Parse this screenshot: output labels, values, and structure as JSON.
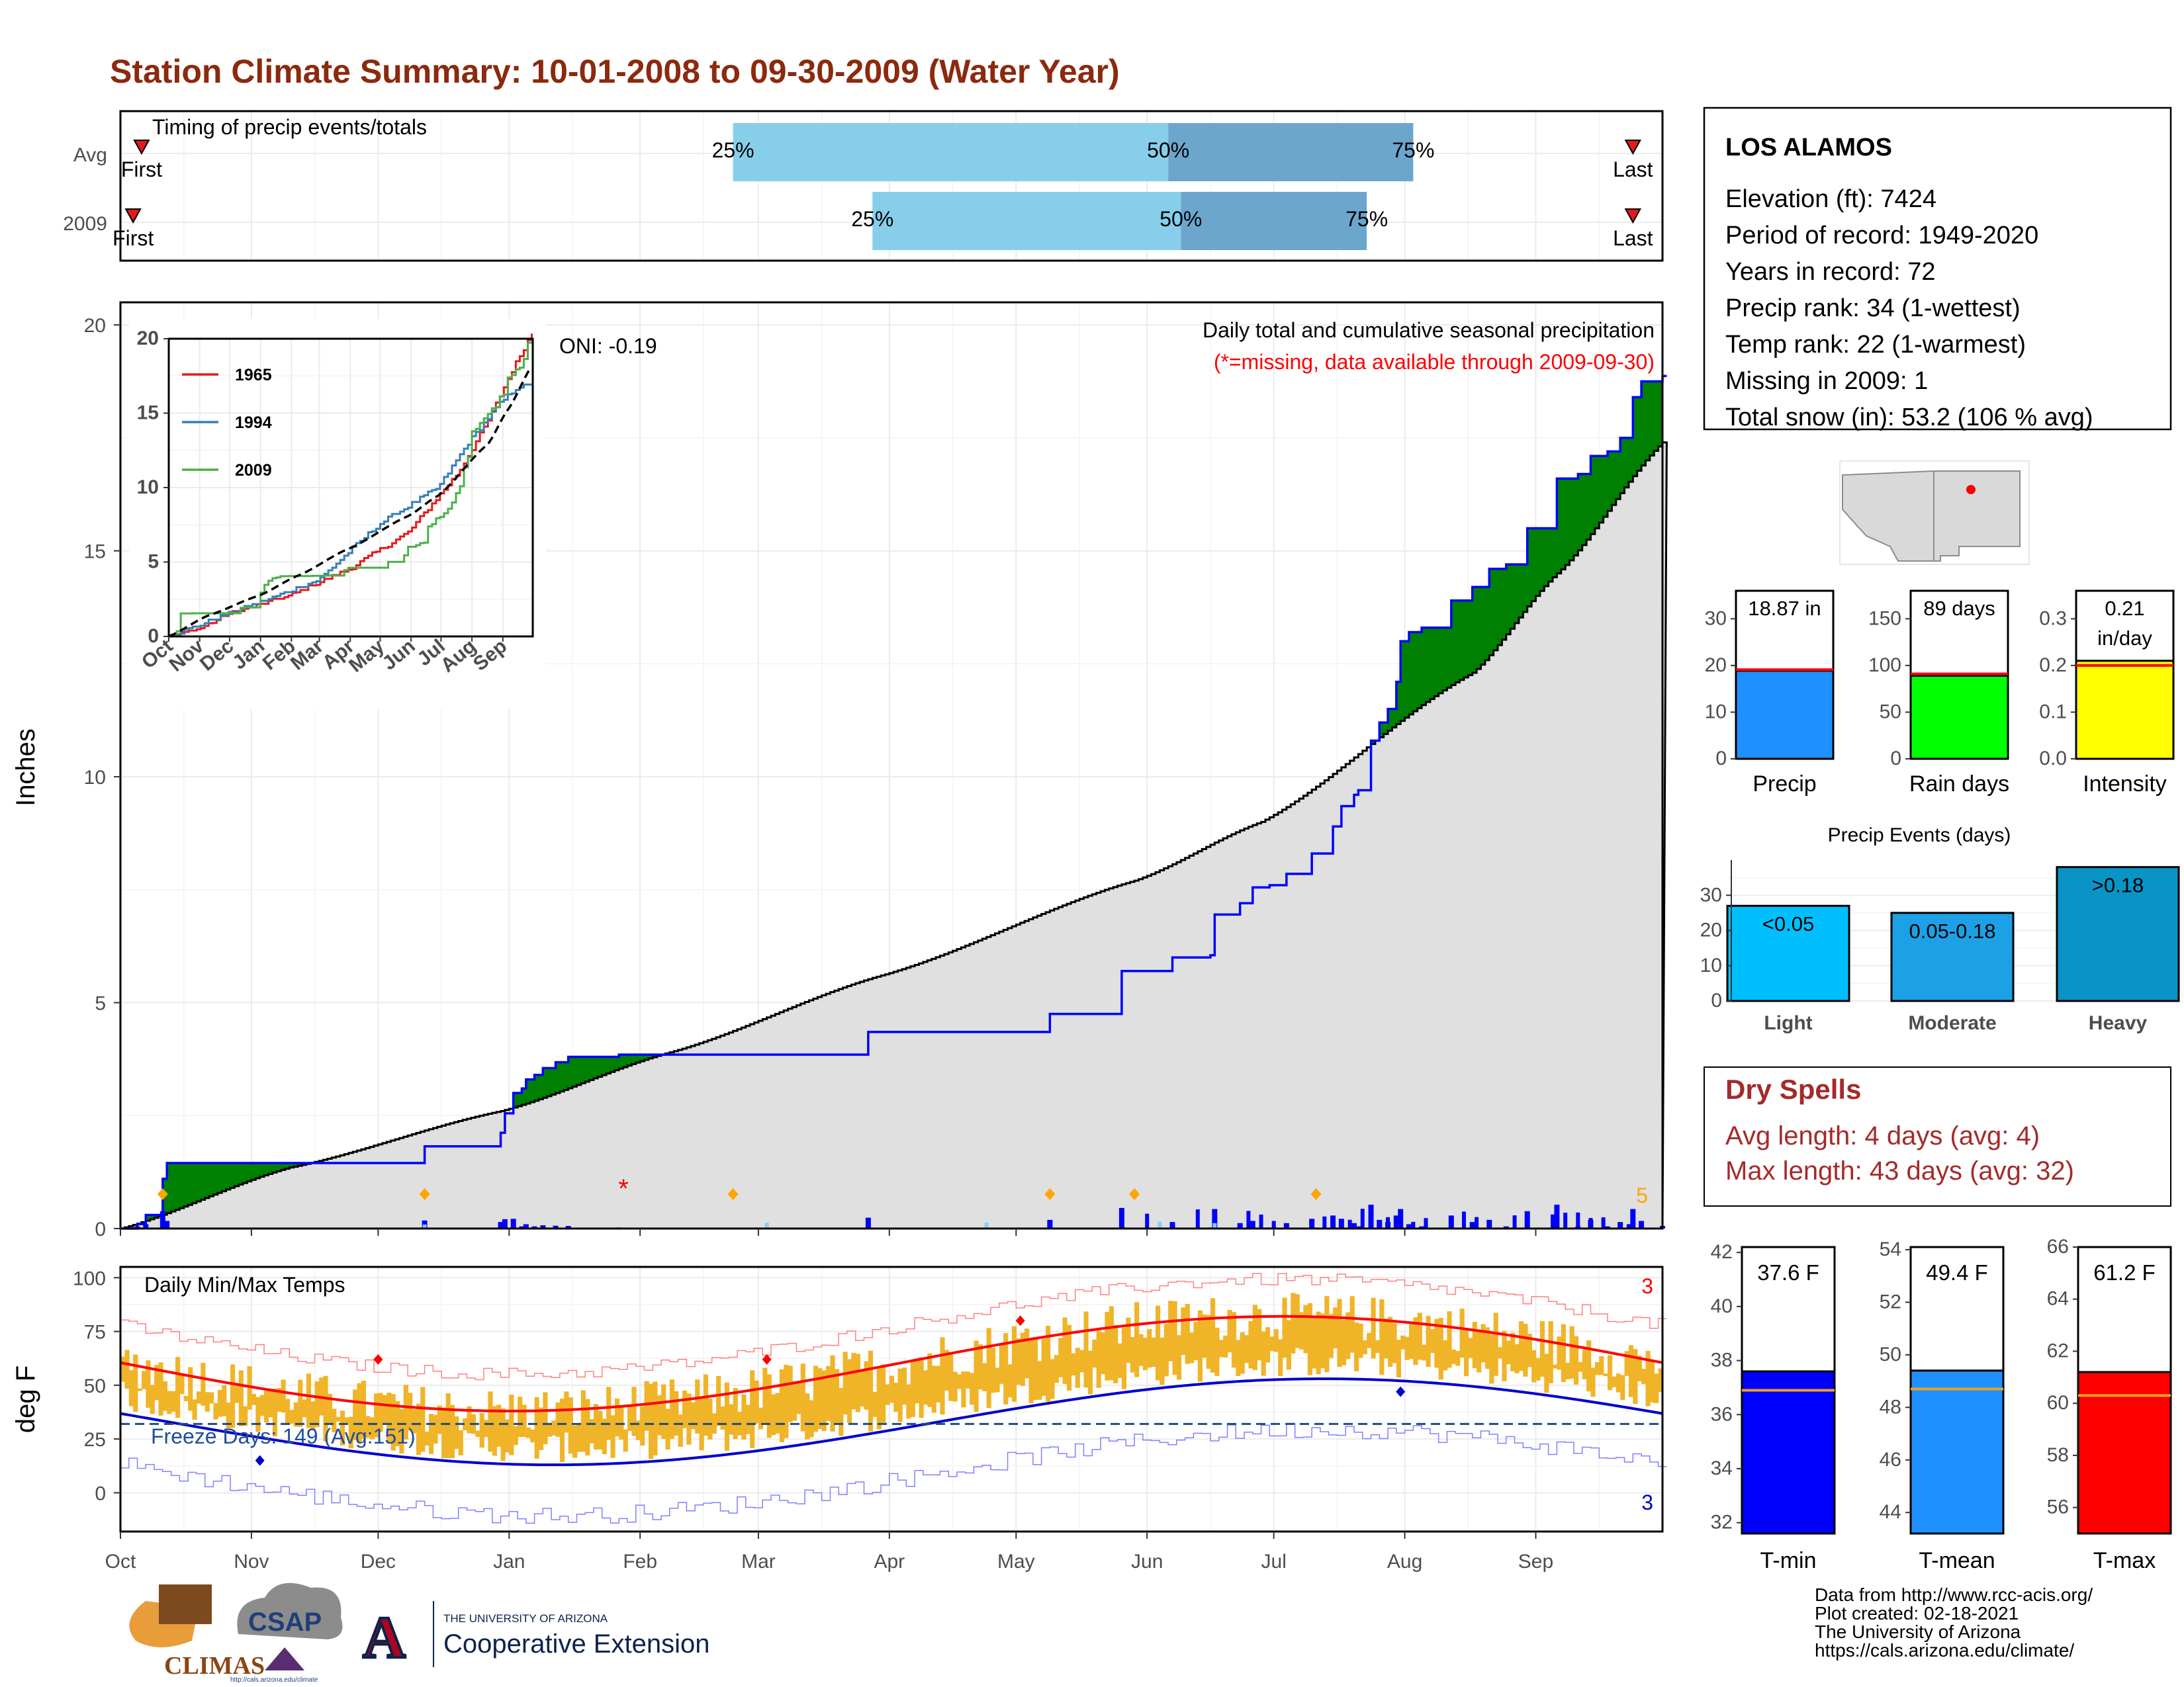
{
  "title": "Station Climate Summary: 10-01-2008 to 09-30-2009 (Water Year)",
  "months": [
    "Oct",
    "Nov",
    "Dec",
    "Jan",
    "Feb",
    "Mar",
    "Apr",
    "May",
    "Jun",
    "Jul",
    "Aug",
    "Sep"
  ],
  "timing": {
    "label": "Timing of precip events/totals",
    "rows": [
      "Avg",
      "2009"
    ],
    "avg": {
      "p25_label": "25%",
      "p50_label": "50%",
      "p75_label": "75%",
      "first": "First",
      "last": "Last",
      "p25_day": 145,
      "p50_day": 248,
      "p75_day": 306,
      "first_day": 5,
      "last_day": 358
    },
    "y2009": {
      "p25_label": "25%",
      "p50_label": "50%",
      "p75_label": "75%",
      "first": "First",
      "last": "Last",
      "p25_day": 178,
      "p50_day": 251,
      "p75_day": 295,
      "first_day": 3,
      "last_day": 358
    },
    "colors": {
      "light": "#87CEEB",
      "dark": "#6CA6CD",
      "marker": "#E31A1C"
    }
  },
  "precip_panel": {
    "ylabel": "Inches",
    "title": "Daily total and cumulative seasonal precipitation",
    "subtitle": "(*=missing, data available through 2009-09-30)",
    "oni": "ONI: -0.19",
    "ylim": [
      0,
      20.5
    ],
    "yticks": [
      0,
      5,
      10,
      15,
      20
    ],
    "count_label": "5",
    "colors": {
      "above": "#008000",
      "below": "#8B5A00",
      "avg_area": "#E0E0E0",
      "line": "#0000FF",
      "missing": "#FF0000",
      "snow": "#FFA500"
    }
  },
  "inset": {
    "series": [
      {
        "name": "1965",
        "color": "#E41A1C"
      },
      {
        "name": "1994",
        "color": "#377EB8"
      },
      {
        "name": "2009",
        "color": "#4DAF4A"
      }
    ],
    "yticks": [
      0,
      5,
      10,
      15,
      20
    ],
    "xticks": [
      "Oct",
      "Nov",
      "Dec",
      "Jan",
      "Feb",
      "Mar",
      "Apr",
      "May",
      "Jun",
      "Jul",
      "Aug",
      "Sep"
    ]
  },
  "temp_panel": {
    "ylabel": "deg F",
    "label": "Daily Min/Max Temps",
    "freeze_label": "Freeze Days: 149 (Avg:151)",
    "yticks": [
      0,
      25,
      50,
      75,
      100
    ],
    "ylim": [
      -18,
      105
    ],
    "freeze_line": 32,
    "max_count": "3",
    "min_count": "3",
    "colors": {
      "bars": "#F0B429",
      "max_avg": "#FF0000",
      "min_avg": "#0000CD",
      "max_rec": "#FF8080",
      "min_rec": "#8080FF"
    }
  },
  "station": {
    "name": "LOS ALAMOS",
    "lines": [
      "Elevation (ft): 7424",
      "Period of record: 1949-2020",
      "Years in record: 72",
      "Precip rank: 34 (1-wettest)",
      "Temp rank: 22 (1-warmest)",
      "Missing in 2009: 1",
      "Total snow (in): 53.2 (106 % avg)"
    ]
  },
  "gauges": [
    {
      "label": "Precip",
      "value_label": "18.87 in",
      "value": 18.87,
      "avg": 19.1,
      "ymax": 36,
      "ticks": [
        0,
        10,
        20,
        30
      ],
      "color": "#1E90FF"
    },
    {
      "label": "Rain days",
      "value_label": "89 days",
      "value": 89,
      "avg": 91,
      "ymax": 180,
      "ticks": [
        0,
        50,
        100,
        150
      ],
      "color": "#00FF00"
    },
    {
      "label": "Intensity",
      "value_label1": "0.21",
      "value_label2": "in/day",
      "value": 0.21,
      "avg": 0.2,
      "ymax": 0.36,
      "ticks": [
        0.0,
        0.1,
        0.2,
        0.3
      ],
      "color": "#FFFF00"
    }
  ],
  "events": {
    "title": "Precip Events (days)",
    "categories": [
      "Light",
      "Moderate",
      "Heavy"
    ],
    "bar_labels": [
      "<0.05",
      "0.05-0.18",
      ">0.18"
    ],
    "values": [
      27,
      25,
      38
    ],
    "ylim": [
      0,
      40
    ],
    "ticks": [
      0,
      10,
      20,
      30
    ],
    "colors": [
      "#00BFFF",
      "#1CA1E6",
      "#0A94C6"
    ]
  },
  "dry_spells": {
    "title": "Dry Spells",
    "avg_line": "Avg length: 4 days (avg: 4)",
    "max_line": "Max length: 43 days (avg: 32)"
  },
  "temps": [
    {
      "label": "T-min",
      "value_label": "37.6 F",
      "value": 37.6,
      "avg": 36.9,
      "ylim": [
        31.6,
        42.2
      ],
      "ticks": [
        32,
        34,
        36,
        38,
        40,
        42
      ],
      "color": "#0000FF"
    },
    {
      "label": "T-mean",
      "value_label": "49.4 F",
      "value": 49.4,
      "avg": 48.7,
      "ylim": [
        43.2,
        54.1
      ],
      "ticks": [
        44,
        46,
        48,
        50,
        52,
        54
      ],
      "color": "#1E90FF"
    },
    {
      "label": "T-max",
      "value_label": "61.2 F",
      "value": 61.2,
      "avg": 60.3,
      "ylim": [
        55.0,
        66.0
      ],
      "ticks": [
        56,
        58,
        60,
        62,
        64,
        66
      ],
      "color": "#FF0000"
    }
  ],
  "footer": {
    "lines": [
      "Data from http://www.rcc-acis.org/",
      "Plot created: 02-18-2021",
      "The University of Arizona",
      "https://cals.arizona.edu/climate/"
    ],
    "climas": "CLIMAS",
    "csap": "CSAP",
    "csap_url": "http://cals.arizona.edu/climate",
    "ua_small": "THE UNIVERSITY OF ARIZONA",
    "ua_big": "Cooperative Extension"
  }
}
